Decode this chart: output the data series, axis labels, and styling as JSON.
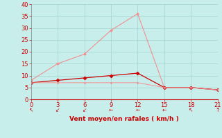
{
  "x": [
    0,
    3,
    6,
    9,
    12,
    15,
    18,
    21
  ],
  "gusts": [
    8,
    15,
    19,
    29,
    36,
    5,
    5,
    4
  ],
  "avg_wind": [
    7,
    8,
    9,
    10,
    11,
    5,
    5,
    4
  ],
  "min_wind": [
    7,
    7,
    7,
    7,
    7,
    5,
    5,
    4
  ],
  "bg_color": "#c8eeec",
  "grid_color": "#a0d4d0",
  "line_color_gusts": "#f09090",
  "line_color_avg": "#cc0000",
  "line_color_min": "#f09090",
  "xlabel": "Vent moyen/en rafales ( km/h )",
  "xlabel_color": "#cc0000",
  "tick_color": "#cc0000",
  "axis_color": "#888888",
  "ylim": [
    0,
    40
  ],
  "xlim": [
    0,
    21
  ],
  "yticks": [
    0,
    5,
    10,
    15,
    20,
    25,
    30,
    35,
    40
  ],
  "xticks": [
    0,
    3,
    6,
    9,
    12,
    15,
    18,
    21
  ],
  "ytick_labels": [
    "0",
    "5",
    "10",
    "15",
    "20",
    "25",
    "30",
    "35",
    "40"
  ]
}
